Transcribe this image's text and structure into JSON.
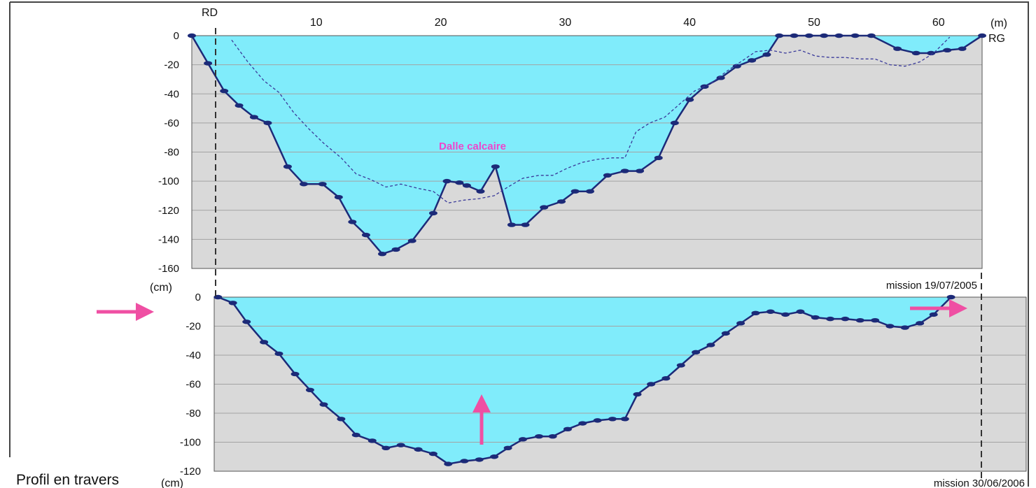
{
  "caption": "Profil en travers",
  "colors": {
    "water": "#80ecfb",
    "bed": "#d9d9d9",
    "line": "#1c2a78",
    "grid": "#a3a3a3",
    "arrow": "#ef4fa3",
    "annotation": "#ee44cc",
    "previous_profile": "#3a3a9a"
  },
  "chart_data": [
    {
      "type": "area",
      "title": "mission 19/07/2005",
      "x_unit": "(m)",
      "y_unit": "(cm)",
      "left_bank": "RD",
      "right_bank": "RG",
      "xlim": [
        0,
        63.5
      ],
      "ylim": [
        -160,
        0
      ],
      "x_ticks": [
        "10",
        "20",
        "30",
        "40",
        "50",
        "60"
      ],
      "x_tick_values": [
        10,
        20,
        30,
        40,
        50,
        60
      ],
      "y_ticks": [
        "0",
        "-20",
        "-40",
        "-60",
        "-80",
        "-100",
        "-120",
        "-140",
        "-160"
      ],
      "y_tick_values": [
        0,
        -20,
        -40,
        -60,
        -80,
        -100,
        -120,
        -140,
        -160
      ],
      "grid": true,
      "annotation": {
        "text": "Dalle calcaire",
        "x": 23,
        "y": -77
      },
      "series": [
        {
          "values": [
            [
              0,
              0
            ],
            [
              1.3,
              -19
            ],
            [
              2.6,
              -38
            ],
            [
              3.8,
              -48
            ],
            [
              5,
              -56
            ],
            [
              6.1,
              -60
            ],
            [
              7.7,
              -90
            ],
            [
              9,
              -102
            ],
            [
              10.5,
              -102
            ],
            [
              11.8,
              -111
            ],
            [
              12.9,
              -128
            ],
            [
              14,
              -137
            ],
            [
              15.3,
              -150
            ],
            [
              16.4,
              -147
            ],
            [
              17.7,
              -141
            ],
            [
              19.4,
              -122
            ],
            [
              20.5,
              -100
            ],
            [
              21.5,
              -101
            ],
            [
              22.1,
              -103
            ],
            [
              23.2,
              -107
            ],
            [
              24.4,
              -90
            ],
            [
              25.7,
              -130
            ],
            [
              26.8,
              -130
            ],
            [
              28.3,
              -118
            ],
            [
              29.7,
              -114
            ],
            [
              30.8,
              -107
            ],
            [
              32,
              -107
            ],
            [
              33.4,
              -96
            ],
            [
              34.8,
              -93
            ],
            [
              36,
              -93
            ],
            [
              37.5,
              -84
            ],
            [
              38.8,
              -60
            ],
            [
              40,
              -44
            ],
            [
              41.2,
              -35
            ],
            [
              42.5,
              -29
            ],
            [
              43.8,
              -21
            ],
            [
              45,
              -17
            ],
            [
              46.2,
              -13
            ],
            [
              47.2,
              0
            ],
            [
              48.4,
              0
            ],
            [
              49.6,
              0
            ],
            [
              50.8,
              0
            ],
            [
              52,
              0
            ],
            [
              53.3,
              0
            ],
            [
              54.6,
              0
            ],
            [
              56.7,
              -9
            ],
            [
              58.2,
              -12
            ],
            [
              59.4,
              -12
            ],
            [
              60.7,
              -10
            ],
            [
              61.9,
              -9
            ],
            [
              63.5,
              0
            ]
          ]
        },
        {
          "values": [
            [
              3.2,
              -3
            ],
            [
              4.5,
              -18
            ],
            [
              5.8,
              -31
            ],
            [
              7,
              -39
            ],
            [
              8.2,
              -53
            ],
            [
              9.4,
              -64
            ],
            [
              10.6,
              -74
            ],
            [
              12,
              -84
            ],
            [
              13.2,
              -95
            ],
            [
              14.4,
              -99
            ],
            [
              15.6,
              -104
            ],
            [
              16.8,
              -102
            ],
            [
              18.2,
              -105
            ],
            [
              19.4,
              -107
            ],
            [
              20.6,
              -115
            ],
            [
              21.9,
              -113
            ],
            [
              23.1,
              -112
            ],
            [
              24.3,
              -110
            ],
            [
              25.4,
              -104
            ],
            [
              26.6,
              -98
            ],
            [
              27.9,
              -96
            ],
            [
              29,
              -96
            ],
            [
              30.2,
              -91
            ],
            [
              31.4,
              -87
            ],
            [
              32.6,
              -85
            ],
            [
              33.8,
              -84
            ],
            [
              34.8,
              -84
            ],
            [
              35.7,
              -66
            ],
            [
              36.8,
              -60
            ],
            [
              38,
              -56
            ],
            [
              39.2,
              -47
            ],
            [
              40.4,
              -38
            ],
            [
              41.7,
              -33
            ],
            [
              42.9,
              -25
            ],
            [
              44.1,
              -18
            ],
            [
              45.3,
              -11
            ],
            [
              46.5,
              -10
            ],
            [
              47.7,
              -12
            ],
            [
              48.9,
              -10
            ],
            [
              50.1,
              -14
            ],
            [
              51.3,
              -15
            ],
            [
              52.5,
              -15
            ],
            [
              53.7,
              -16
            ],
            [
              54.9,
              -16
            ],
            [
              56.1,
              -20
            ],
            [
              57.3,
              -21
            ],
            [
              58.5,
              -18
            ],
            [
              59.6,
              -12
            ],
            [
              60.9,
              -1
            ]
          ]
        }
      ]
    },
    {
      "type": "area",
      "title": "mission 30/06/2006",
      "y_unit": "(cm)",
      "xlim": [
        0,
        63.5
      ],
      "ylim": [
        -120,
        0
      ],
      "y_ticks": [
        "0",
        "-20",
        "-40",
        "-60",
        "-80",
        "-100",
        "-120"
      ],
      "y_tick_values": [
        0,
        -20,
        -40,
        -60,
        -80,
        -100,
        -120
      ],
      "grid": true,
      "series": [
        {
          "values": [
            [
              2.1,
              0
            ],
            [
              3.3,
              -4
            ],
            [
              4.4,
              -17
            ],
            [
              5.8,
              -31
            ],
            [
              7,
              -39
            ],
            [
              8.3,
              -53
            ],
            [
              9.5,
              -64
            ],
            [
              10.6,
              -74
            ],
            [
              12,
              -84
            ],
            [
              13.2,
              -95
            ],
            [
              14.5,
              -99
            ],
            [
              15.6,
              -104
            ],
            [
              16.8,
              -102
            ],
            [
              18.2,
              -105
            ],
            [
              19.4,
              -108
            ],
            [
              20.6,
              -115
            ],
            [
              21.9,
              -113
            ],
            [
              23.1,
              -112
            ],
            [
              24.3,
              -110
            ],
            [
              25.4,
              -104
            ],
            [
              26.6,
              -98
            ],
            [
              27.9,
              -96
            ],
            [
              29,
              -96
            ],
            [
              30.2,
              -91
            ],
            [
              31.4,
              -87
            ],
            [
              32.6,
              -85
            ],
            [
              33.8,
              -84
            ],
            [
              34.8,
              -84
            ],
            [
              35.8,
              -67
            ],
            [
              36.9,
              -60
            ],
            [
              38.1,
              -56
            ],
            [
              39.3,
              -47
            ],
            [
              40.5,
              -38
            ],
            [
              41.7,
              -33
            ],
            [
              42.9,
              -25
            ],
            [
              44.1,
              -18
            ],
            [
              45.3,
              -11
            ],
            [
              46.5,
              -10
            ],
            [
              47.7,
              -12
            ],
            [
              48.9,
              -10
            ],
            [
              50.1,
              -14
            ],
            [
              51.3,
              -15
            ],
            [
              52.5,
              -15
            ],
            [
              53.7,
              -16
            ],
            [
              54.9,
              -16
            ],
            [
              56.1,
              -20
            ],
            [
              57.3,
              -21
            ],
            [
              58.5,
              -18
            ],
            [
              59.6,
              -12
            ],
            [
              61,
              0
            ]
          ]
        }
      ]
    }
  ]
}
